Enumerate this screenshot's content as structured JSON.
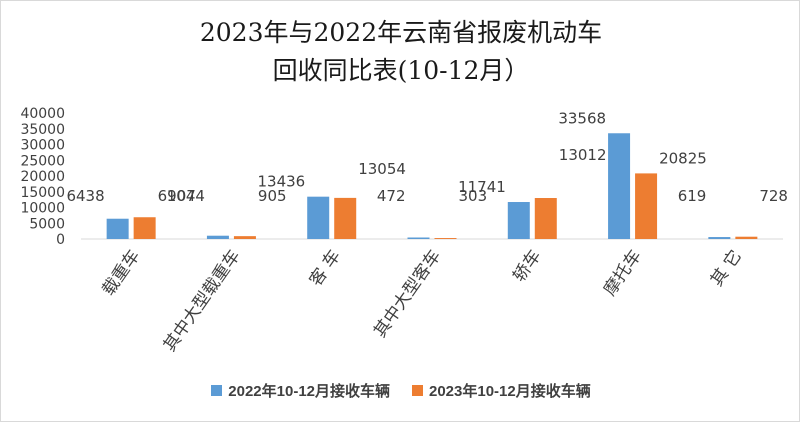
{
  "chart_data": {
    "type": "bar",
    "title": "2023年与2022年云南省报废机动车",
    "subtitle": "回收同比表(10-12月）",
    "categories": [
      "载重车",
      "其中大型载重车",
      "客  车",
      "其中大型客车",
      "轿车",
      "摩托车",
      "其  它"
    ],
    "series": [
      {
        "name": "2022年10-12月接收车辆",
        "color": "#5b9bd5",
        "values": [
          6438,
          1044,
          13436,
          472,
          11741,
          33568,
          619
        ]
      },
      {
        "name": "2023年10-12月接收车辆",
        "color": "#ed7d31",
        "values": [
          6907,
          905,
          13054,
          303,
          13012,
          20825,
          728
        ]
      }
    ],
    "yticks": [
      0,
      5000,
      10000,
      15000,
      20000,
      25000,
      30000,
      35000,
      40000
    ],
    "ylim": [
      0,
      40000
    ],
    "grid": false,
    "legend_position": "bottom"
  }
}
